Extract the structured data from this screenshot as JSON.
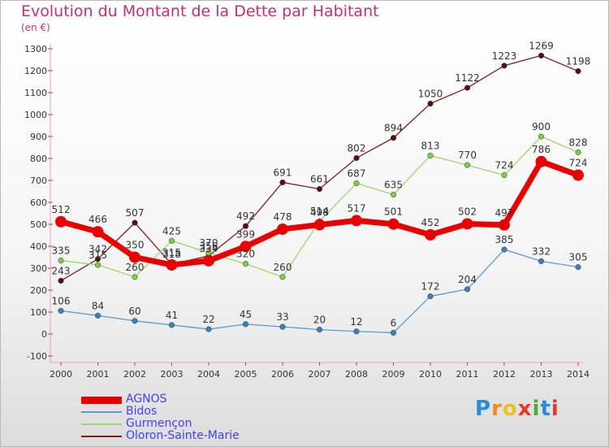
{
  "title": "Evolution du Montant de la Dette par Habitant",
  "subtitle": "(en €)",
  "logo": {
    "letters": [
      "P",
      "r",
      "o",
      "x",
      "i",
      "t",
      "i"
    ],
    "colors": [
      "#2a8bd6",
      "#f08a1c",
      "#e8c21a",
      "#e23b2a",
      "#4aaa3c",
      "#2a8bd6",
      "#e23b2a"
    ]
  },
  "chart_data": {
    "type": "line",
    "title": "Evolution du Montant de la Dette par Habitant",
    "ylabel": "(en €)",
    "x": [
      "2000",
      "2001",
      "2002",
      "2003",
      "2004",
      "2005",
      "2006",
      "2007",
      "2008",
      "2009",
      "2010",
      "2011",
      "2012",
      "2013",
      "2014"
    ],
    "ylim": [
      -100,
      1300
    ],
    "yticks": [
      -100,
      0,
      100,
      200,
      300,
      400,
      500,
      600,
      700,
      800,
      900,
      1000,
      1100,
      1200,
      1300
    ],
    "grid": false,
    "legend": "bottom-left",
    "series": [
      {
        "name": "AGNOS",
        "color": "#e80000",
        "stroke": "#e80000",
        "dot": "#e80000",
        "values": [
          512,
          466,
          350,
          315,
          334,
          399,
          478,
          498,
          517,
          501,
          452,
          502,
          497,
          786,
          724
        ],
        "labels": [
          "512",
          "466",
          "350",
          "315",
          "334",
          "399",
          "478",
          "498",
          "517",
          "501",
          "452",
          "502",
          "497",
          "786",
          "724"
        ]
      },
      {
        "name": "Bidos",
        "color": "#5d9bcb",
        "stroke": "#5d9bcb",
        "dot": "#3a7fc0",
        "values": [
          106,
          84,
          60,
          41,
          22,
          45,
          33,
          20,
          12,
          6,
          172,
          204,
          385,
          332,
          305
        ],
        "labels": [
          "106",
          "84",
          "60",
          "41",
          "22",
          "45",
          "33",
          "20",
          "12",
          "6",
          "172",
          "204",
          "385",
          "332",
          "305"
        ]
      },
      {
        "name": "Gurmençon",
        "color": "#9ad86a",
        "stroke": "#9ad86a",
        "dot": "#7ccc4a",
        "values": [
          335,
          315,
          260,
          425,
          370,
          320,
          260,
          514,
          687,
          635,
          813,
          770,
          724,
          900,
          828
        ],
        "labels": [
          "335",
          "315",
          "260",
          "425",
          "370",
          "320",
          "260",
          "514",
          "687",
          "635",
          "813",
          "770",
          "724",
          "900",
          "828"
        ]
      },
      {
        "name": "Oloron-Sainte-Marie",
        "color": "#7a2020",
        "stroke": "#7a2020",
        "dot": "#5a1010",
        "values": [
          243,
          342,
          507,
          318,
          356,
          492,
          691,
          661,
          802,
          894,
          1050,
          1122,
          1223,
          1269,
          1198
        ],
        "labels": [
          "243",
          "342",
          "507",
          "318",
          "356",
          "492",
          "691",
          "661",
          "802",
          "894",
          "1050",
          "1122",
          "1223",
          "1269",
          "1198"
        ]
      }
    ]
  }
}
